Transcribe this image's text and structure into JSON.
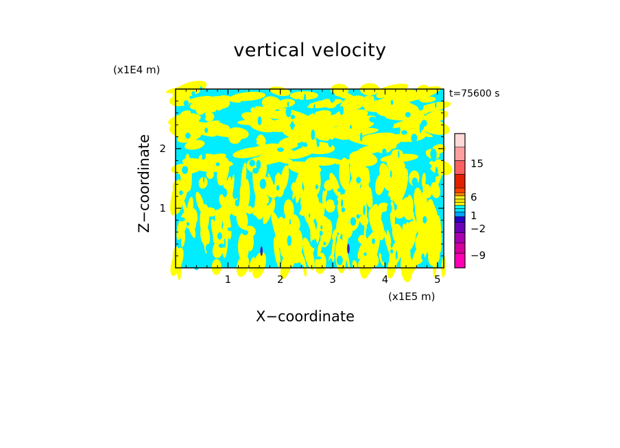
{
  "chart_data": {
    "type": "heatmap",
    "title": "vertical velocity",
    "xlabel": "X−coordinate",
    "ylabel": "Z−coordinate",
    "x_unit_label": "(x1E5 m)",
    "y_unit_label": "(x1E4 m)",
    "time_label": "t=75600 s",
    "xlim": [
      0,
      5.12
    ],
    "ylim": [
      0,
      3.0
    ],
    "x_ticks": [
      1,
      2,
      3,
      4,
      5
    ],
    "y_ticks": [
      1,
      2
    ],
    "colorbar": {
      "levels": [
        -12,
        -9,
        -6,
        -4,
        -3,
        -2,
        -1,
        -0.5,
        0,
        0.5,
        1,
        2,
        4,
        6,
        10,
        15,
        20,
        30
      ],
      "colors": [
        "#ff00b4",
        "#d4009c",
        "#a800b0",
        "#6a00b8",
        "#2a00c8",
        "#00a0ff",
        "#00e6ff",
        "#00ffff",
        "#ffff00",
        "#f0e000",
        "#ffff20",
        "#ff8000",
        "#ff4000",
        "#e02000",
        "#ff6060",
        "#ffa0a0",
        "#ffd8d8"
      ],
      "tick_labels": [
        "15",
        "6",
        "1",
        "−2",
        "−9"
      ]
    },
    "dominant_values": {
      "positive_color": "#ffff00",
      "negative_color": "#00ecff",
      "strong_negative_color": "#3a20c0"
    }
  }
}
